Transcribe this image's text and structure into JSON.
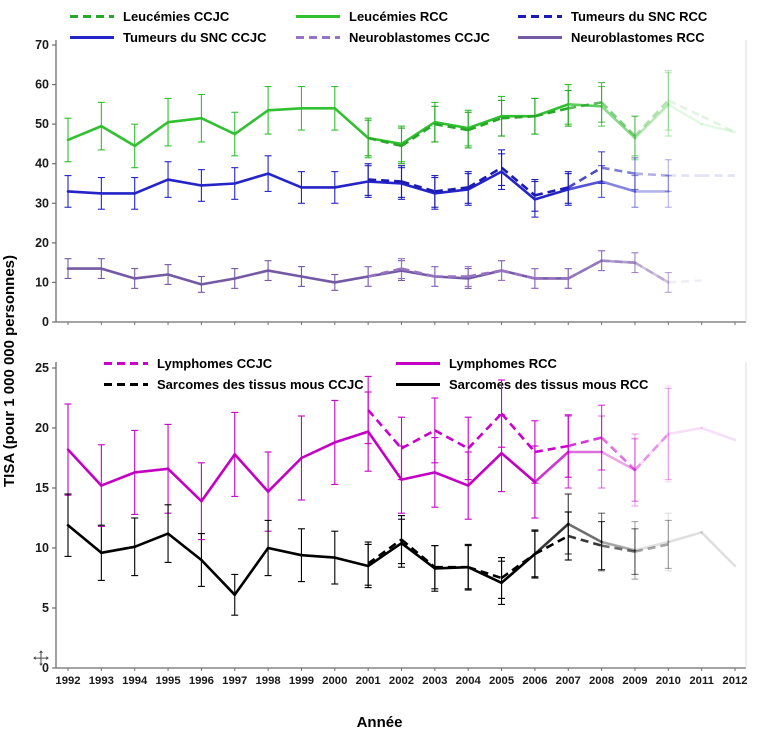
{
  "axes": {
    "y_label": "TISA (pour 1 000 000 personnes)",
    "x_label": "Année"
  },
  "chart_data": [
    {
      "type": "line",
      "title": "",
      "ylim": [
        0,
        70
      ],
      "yticks": [
        0,
        10,
        20,
        30,
        40,
        50,
        60,
        70
      ],
      "grid": false,
      "legend_position": "top",
      "x": [
        1992,
        1993,
        1994,
        1995,
        1996,
        1997,
        1998,
        1999,
        2000,
        2001,
        2002,
        2003,
        2004,
        2005,
        2006,
        2007,
        2008,
        2009,
        2010,
        2011,
        2012
      ],
      "series": [
        {
          "name": "Leucémies CCJC",
          "color": "#28A828",
          "dash": true,
          "fade_from": 2007,
          "values": [
            null,
            null,
            null,
            null,
            null,
            null,
            null,
            null,
            null,
            46.5,
            44.5,
            50,
            48.5,
            51.5,
            52,
            54,
            55.5,
            47,
            56,
            52,
            48
          ],
          "err": [
            null,
            null,
            null,
            null,
            null,
            null,
            null,
            null,
            null,
            4.5,
            4.5,
            4.5,
            4.5,
            4.5,
            4.5,
            4.5,
            5,
            5,
            7.5,
            null,
            null
          ]
        },
        {
          "name": "Leucémies RCC",
          "color": "#30C030",
          "dash": false,
          "fade_from": 2007,
          "values": [
            46,
            49.5,
            44.5,
            50.5,
            51.5,
            47.5,
            53.5,
            54,
            54,
            46.5,
            45,
            50.5,
            49,
            52,
            52,
            55,
            54.5,
            46.5,
            55,
            50,
            48
          ],
          "err": [
            5.5,
            6,
            5.5,
            6,
            6,
            5.5,
            6,
            5.5,
            5.5,
            5,
            4.5,
            5,
            4.5,
            5,
            4.5,
            5,
            5,
            5.5,
            8,
            null,
            null
          ]
        },
        {
          "name": "Tumeurs du SNC RCC",
          "color": "#1B1BAF",
          "dash": true,
          "fade_from": 2007,
          "values": [
            null,
            null,
            null,
            null,
            null,
            null,
            null,
            null,
            null,
            36,
            35.5,
            33,
            34,
            39,
            32,
            34,
            39,
            37.5,
            37,
            37,
            37
          ],
          "err": [
            null,
            null,
            null,
            null,
            null,
            null,
            null,
            null,
            null,
            4,
            4,
            4,
            4,
            4.5,
            4,
            4,
            4,
            4,
            4,
            null,
            null
          ]
        },
        {
          "name": "Tumeurs du SNC CCJC",
          "color": "#2424C8",
          "dash": false,
          "fade_from": 2007,
          "values": [
            33,
            32.5,
            32.5,
            36,
            34.5,
            35,
            37.5,
            34,
            34,
            35.5,
            35,
            32.5,
            33.5,
            38,
            31,
            33.5,
            35.5,
            33,
            33,
            null,
            null
          ],
          "err": [
            4,
            4,
            4,
            4.5,
            4,
            4,
            4.5,
            4,
            4,
            4,
            4,
            4,
            4,
            4.5,
            4.5,
            4,
            4,
            4,
            4,
            null,
            null
          ]
        },
        {
          "name": "Neuroblastomes CCJC",
          "color": "#9674C1",
          "dash": true,
          "fade_from": 2007,
          "values": [
            null,
            null,
            null,
            null,
            null,
            null,
            null,
            null,
            null,
            11.5,
            13.5,
            11.5,
            11.5,
            13,
            11,
            11,
            15.5,
            15,
            10,
            10.5,
            null
          ],
          "err": [
            null,
            null,
            null,
            null,
            null,
            null,
            null,
            null,
            null,
            2.5,
            2.5,
            2.5,
            2.5,
            2.5,
            2.5,
            2.5,
            2.5,
            2.5,
            2.5,
            null,
            null
          ]
        },
        {
          "name": "Neuroblastomes RCC",
          "color": "#7459A4",
          "dash": false,
          "fade_from": 2007,
          "values": [
            13.5,
            13.5,
            11,
            12,
            9.5,
            11,
            13,
            11.5,
            10,
            11.5,
            13,
            11.5,
            11,
            13,
            11,
            11,
            15.5,
            15,
            10,
            null,
            null
          ],
          "err": [
            2.5,
            2.5,
            2.5,
            2.5,
            2,
            2.5,
            2.5,
            2.5,
            2,
            2.5,
            2.5,
            2.5,
            2.5,
            2.5,
            2.5,
            2.5,
            2.5,
            2.5,
            2.5,
            null,
            null
          ]
        }
      ]
    },
    {
      "type": "line",
      "title": "",
      "ylim": [
        0,
        25
      ],
      "yticks": [
        0,
        5,
        10,
        15,
        20,
        25
      ],
      "grid": false,
      "legend_position": "top",
      "x": [
        1992,
        1993,
        1994,
        1995,
        1996,
        1997,
        1998,
        1999,
        2000,
        2001,
        2002,
        2003,
        2004,
        2005,
        2006,
        2007,
        2008,
        2009,
        2010,
        2011,
        2012
      ],
      "series": [
        {
          "name": "Lymphomes CCJC",
          "color": "#CC00CC",
          "dash": true,
          "fade_from": 2007,
          "values": [
            null,
            null,
            null,
            null,
            null,
            null,
            null,
            null,
            null,
            21.5,
            18.3,
            19.8,
            18.3,
            21.2,
            18,
            18.5,
            19.2,
            16.5,
            19.5,
            null,
            null
          ],
          "err": [
            null,
            null,
            null,
            null,
            null,
            null,
            null,
            null,
            null,
            2.8,
            2.6,
            2.7,
            2.6,
            2.8,
            2.6,
            2.6,
            2.7,
            2.6,
            3.8,
            null,
            null
          ]
        },
        {
          "name": "Lymphomes RCC",
          "color": "#C400C4",
          "dash": false,
          "fade_from": 2006,
          "values": [
            18.2,
            15.2,
            16.3,
            16.6,
            13.9,
            17.8,
            14.7,
            17.5,
            18.8,
            19.7,
            15.7,
            16.3,
            15.2,
            17.9,
            15.5,
            18,
            18,
            16.5,
            19.5,
            20,
            19
          ],
          "err": [
            3.8,
            3.4,
            3.5,
            3.7,
            3.2,
            3.5,
            3.3,
            3.5,
            3.5,
            3.3,
            2.8,
            2.9,
            2.8,
            3.2,
            3,
            3,
            3,
            3,
            4,
            null,
            null
          ]
        },
        {
          "name": "Sarcomes des tissus mous CCJC",
          "color": "#000000",
          "dash": true,
          "fade_from": 2007,
          "values": [
            null,
            null,
            null,
            null,
            null,
            null,
            null,
            null,
            null,
            8.7,
            10.7,
            8.4,
            8.4,
            7.5,
            9.5,
            11,
            10.2,
            9.7,
            10.3,
            null,
            null
          ],
          "err": [
            null,
            null,
            null,
            null,
            null,
            null,
            null,
            null,
            null,
            1.8,
            2,
            1.8,
            1.8,
            1.7,
            1.9,
            2,
            2,
            1.9,
            2,
            null,
            null
          ]
        },
        {
          "name": "Sarcomes des tissus mous RCC",
          "color": "#000000",
          "dash": false,
          "fade_from": 2006,
          "values": [
            11.9,
            9.6,
            10.1,
            11.2,
            9,
            6.1,
            10,
            9.4,
            9.2,
            8.5,
            10.4,
            8.3,
            8.4,
            7.1,
            9.5,
            12,
            10.5,
            9.8,
            10.5,
            11.3,
            8.5
          ],
          "err": [
            2.6,
            2.3,
            2.4,
            2.4,
            2.2,
            1.7,
            2.3,
            2.2,
            2.2,
            1.8,
            2,
            1.9,
            1.9,
            1.8,
            2,
            2.5,
            2.4,
            2.4,
            2.4,
            null,
            null
          ]
        }
      ]
    }
  ]
}
